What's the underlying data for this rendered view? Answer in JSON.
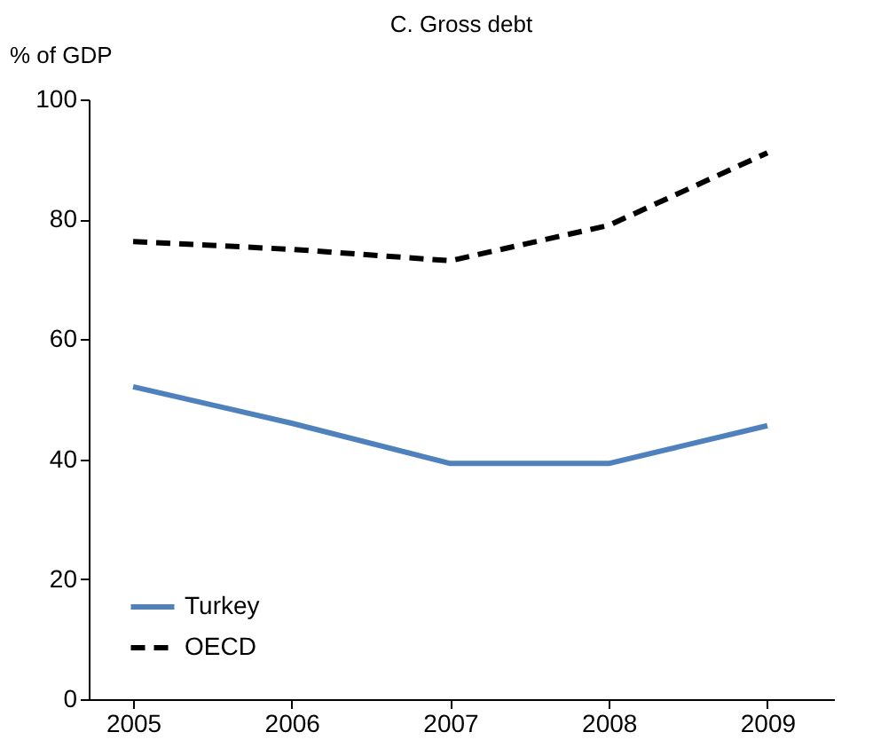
{
  "chart_data": {
    "type": "line",
    "title": "C. Gross debt",
    "ylabel": "% of GDP",
    "categories": [
      "2005",
      "2006",
      "2007",
      "2008",
      "2009"
    ],
    "series": [
      {
        "name": "Turkey",
        "color": "#4f81bd",
        "line_style": "solid",
        "values": [
          52.1,
          46,
          39.3,
          39.3,
          45.6
        ]
      },
      {
        "name": "OECD",
        "color": "#000000",
        "line_style": "dashed",
        "values": [
          76.3,
          75,
          73.1,
          79,
          91.1
        ]
      }
    ],
    "ylim": [
      0,
      100
    ],
    "yticks": [
      0,
      20,
      40,
      60,
      80,
      100
    ],
    "grid": false,
    "legend": "bottom left",
    "marker": "none"
  }
}
